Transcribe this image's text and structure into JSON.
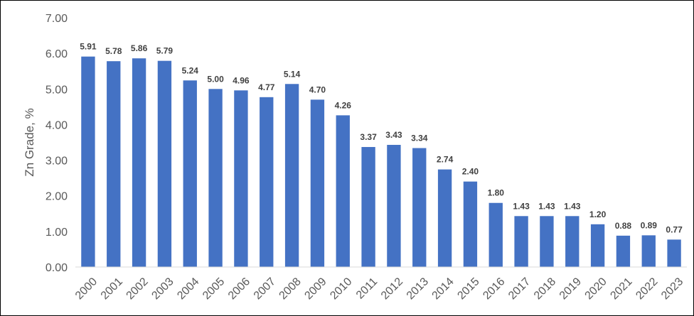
{
  "chart_data": {
    "type": "bar",
    "title": "",
    "xlabel": "",
    "ylabel": "Zn Grade, %",
    "ylim": [
      0,
      7
    ],
    "yticks": [
      "0.00",
      "1.00",
      "2.00",
      "3.00",
      "4.00",
      "5.00",
      "6.00",
      "7.00"
    ],
    "grid": false,
    "legend": "none",
    "bar_color": "#4472C4",
    "categories": [
      "2000",
      "2001",
      "2002",
      "2003",
      "2004",
      "2005",
      "2006",
      "2007",
      "2008",
      "2009",
      "2010",
      "2011",
      "2012",
      "2013",
      "2014",
      "2015",
      "2016",
      "2017",
      "2018",
      "2019",
      "2020",
      "2021",
      "2022",
      "2023"
    ],
    "values": [
      5.91,
      5.78,
      5.86,
      5.79,
      5.24,
      5.0,
      4.96,
      4.77,
      5.14,
      4.7,
      4.26,
      3.37,
      3.43,
      3.34,
      2.74,
      2.4,
      1.8,
      1.43,
      1.43,
      1.43,
      1.2,
      0.88,
      0.89,
      0.77
    ],
    "data_labels": [
      "5.91",
      "5.78",
      "5.86",
      "5.79",
      "5.24",
      "5.00",
      "4.96",
      "4.77",
      "5.14",
      "4.70",
      "4.26",
      "3.37",
      "3.43",
      "3.34",
      "2.74",
      "2.40",
      "1.80",
      "1.43",
      "1.43",
      "1.43",
      "1.20",
      "0.88",
      "0.89",
      "0.77"
    ]
  }
}
